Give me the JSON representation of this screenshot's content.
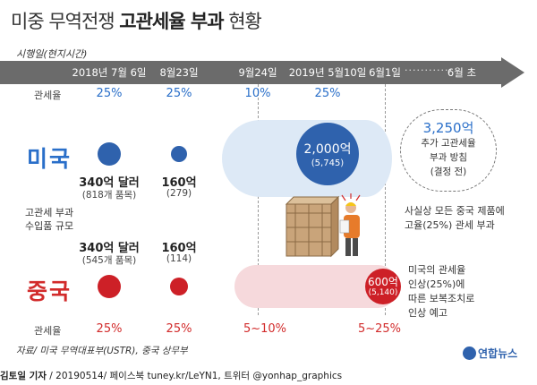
{
  "title": {
    "normal": "미중 무역전쟁",
    "bold": "고관세율 부과",
    "suffix": "현황"
  },
  "axis_caption": "시행일(현지시간)",
  "timeline": {
    "dates": [
      "2018년 7월 6일",
      "8월23일",
      "9월24일",
      "2019년 5월10일",
      "6월1일",
      "6월 초"
    ],
    "dots": "············"
  },
  "us": {
    "label": "미국",
    "rate_label": "관세율",
    "rates": [
      "25%",
      "25%",
      "10%",
      "25%"
    ],
    "amounts": [
      {
        "value": "340억 달러",
        "detail": "(818개 품목)"
      },
      {
        "value": "160억",
        "detail": "(279)"
      }
    ],
    "big": {
      "value": "2,000억",
      "detail": "(5,745)"
    },
    "note": {
      "amount": "3,250억",
      "lines": [
        "추가 고관세율",
        "부과 방침",
        "(결정 전)"
      ]
    },
    "extra_lines": [
      "사실상 모든 중국 제품에",
      "고율(25%) 관세 부과"
    ]
  },
  "middle_label": [
    "고관세 부과",
    "수입품 규모"
  ],
  "china": {
    "label": "중국",
    "rate_label": "관세율",
    "rates": [
      "25%",
      "25%",
      "5~10%",
      "5~25%"
    ],
    "amounts": [
      {
        "value": "340억 달러",
        "detail": "(545개 품목)"
      },
      {
        "value": "160억",
        "detail": "(114)"
      }
    ],
    "big": {
      "value": "600억",
      "detail": "(5,140)"
    },
    "note_lines": [
      "미국의 관세율",
      "인상(25%)에",
      "따른 보복조치로",
      "인상 예고"
    ]
  },
  "footer": {
    "source": "자료/ 미국 무역대표부(USTR), 중국 상무부",
    "author": "김토일 기자",
    "credit": " / 20190514/ 페이스북 tuney.kr/LeYN1, 트위터 @yonhap_graphics",
    "logo": "연합뉴스"
  },
  "colors": {
    "us": "#2f62ad",
    "china": "#cd2027",
    "timeline": "#6b6b6b"
  }
}
